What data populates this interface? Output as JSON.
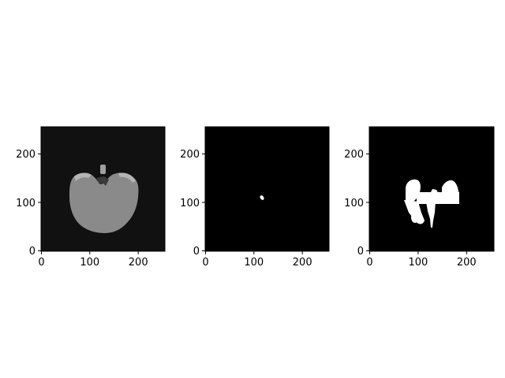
{
  "figure": {
    "panels": [
      {
        "image_content": "segmented scan slice",
        "x_tick_labels": [
          "0",
          "100",
          "200"
        ],
        "y_tick_labels": [
          "0",
          "100",
          "200"
        ]
      },
      {
        "image_content": "small mask",
        "x_tick_labels": [
          "0",
          "100",
          "200"
        ],
        "y_tick_labels": [
          "0",
          "100",
          "200"
        ]
      },
      {
        "image_content": "large mask",
        "x_tick_labels": [
          "0",
          "100",
          "200"
        ],
        "y_tick_labels": [
          "0",
          "100",
          "200"
        ]
      }
    ]
  },
  "colors": {
    "panel1_background": "#111111",
    "panel1_region": "#8a8a8a",
    "panel1_region_highlight": "#b5b5b5",
    "mask_background": "#000000",
    "mask_foreground": "#ffffff"
  }
}
